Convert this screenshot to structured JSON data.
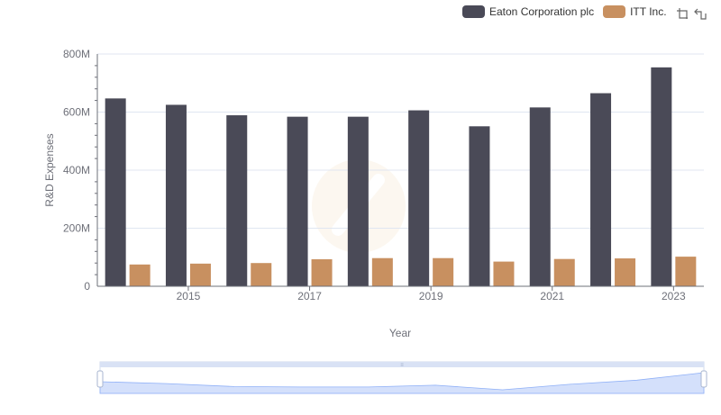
{
  "legend": {
    "series": [
      {
        "name": "Eaton Corporation plc",
        "color": "#4a4a57"
      },
      {
        "name": "ITT Inc.",
        "color": "#c89060"
      }
    ]
  },
  "toolbox": {
    "icons": [
      "zoom-icon",
      "zoom-reset-icon"
    ]
  },
  "chart_data": {
    "type": "bar",
    "xlabel": "Year",
    "ylabel": "R&D Expenses",
    "categories": [
      "2014",
      "2015",
      "2016",
      "2017",
      "2018",
      "2019",
      "2020",
      "2021",
      "2022",
      "2023"
    ],
    "x_tick_labels": [
      "2015",
      "2017",
      "2019",
      "2021",
      "2023"
    ],
    "y_tick_labels": [
      "0",
      "200M",
      "400M",
      "600M",
      "800M"
    ],
    "ylim": [
      0,
      800000000
    ],
    "grid": true,
    "legend_position": "top-right",
    "series": [
      {
        "name": "Eaton Corporation plc",
        "color": "#4a4a57",
        "values": [
          647000000,
          625000000,
          589000000,
          584000000,
          584000000,
          606000000,
          551000000,
          616000000,
          665000000,
          754000000
        ]
      },
      {
        "name": "ITT Inc.",
        "color": "#c89060",
        "values": [
          75000000,
          78000000,
          80000000,
          93000000,
          97000000,
          97000000,
          85000000,
          94000000,
          96000000,
          102000000
        ]
      }
    ]
  },
  "data_zoom": {
    "start_percent": 0,
    "end_percent": 100,
    "fill_color": "#d4e0fb",
    "line_color": "#8fb0f7"
  }
}
